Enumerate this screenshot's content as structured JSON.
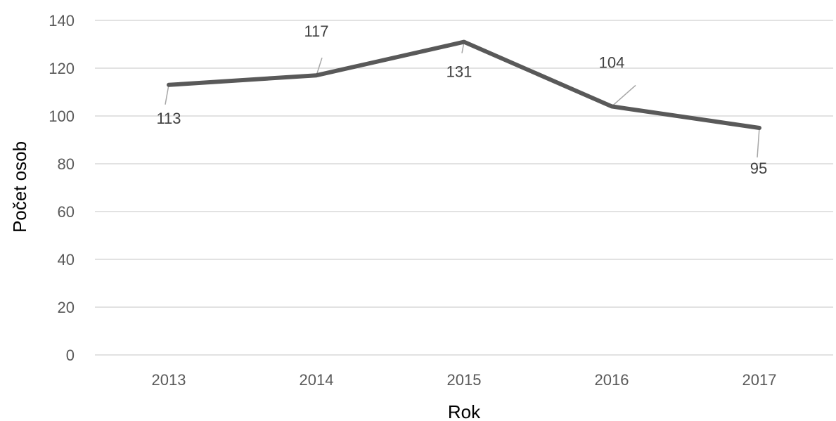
{
  "chart_data": {
    "type": "line",
    "title": "",
    "xlabel": "Rok",
    "ylabel": "Počet osob",
    "categories": [
      "2013",
      "2014",
      "2015",
      "2016",
      "2017"
    ],
    "series": [
      {
        "values": [
          113,
          117,
          131,
          104,
          95
        ],
        "color": "#595959"
      }
    ],
    "data_labels": [
      "113",
      "117",
      "131",
      "104",
      "95"
    ],
    "ylim": [
      0,
      140
    ],
    "yticks": [
      0,
      20,
      40,
      60,
      80,
      100,
      120,
      140
    ],
    "ytick_labels": [
      "0",
      "20",
      "40",
      "60",
      "80",
      "100",
      "120",
      "140"
    ],
    "grid": true,
    "legend": "none"
  }
}
